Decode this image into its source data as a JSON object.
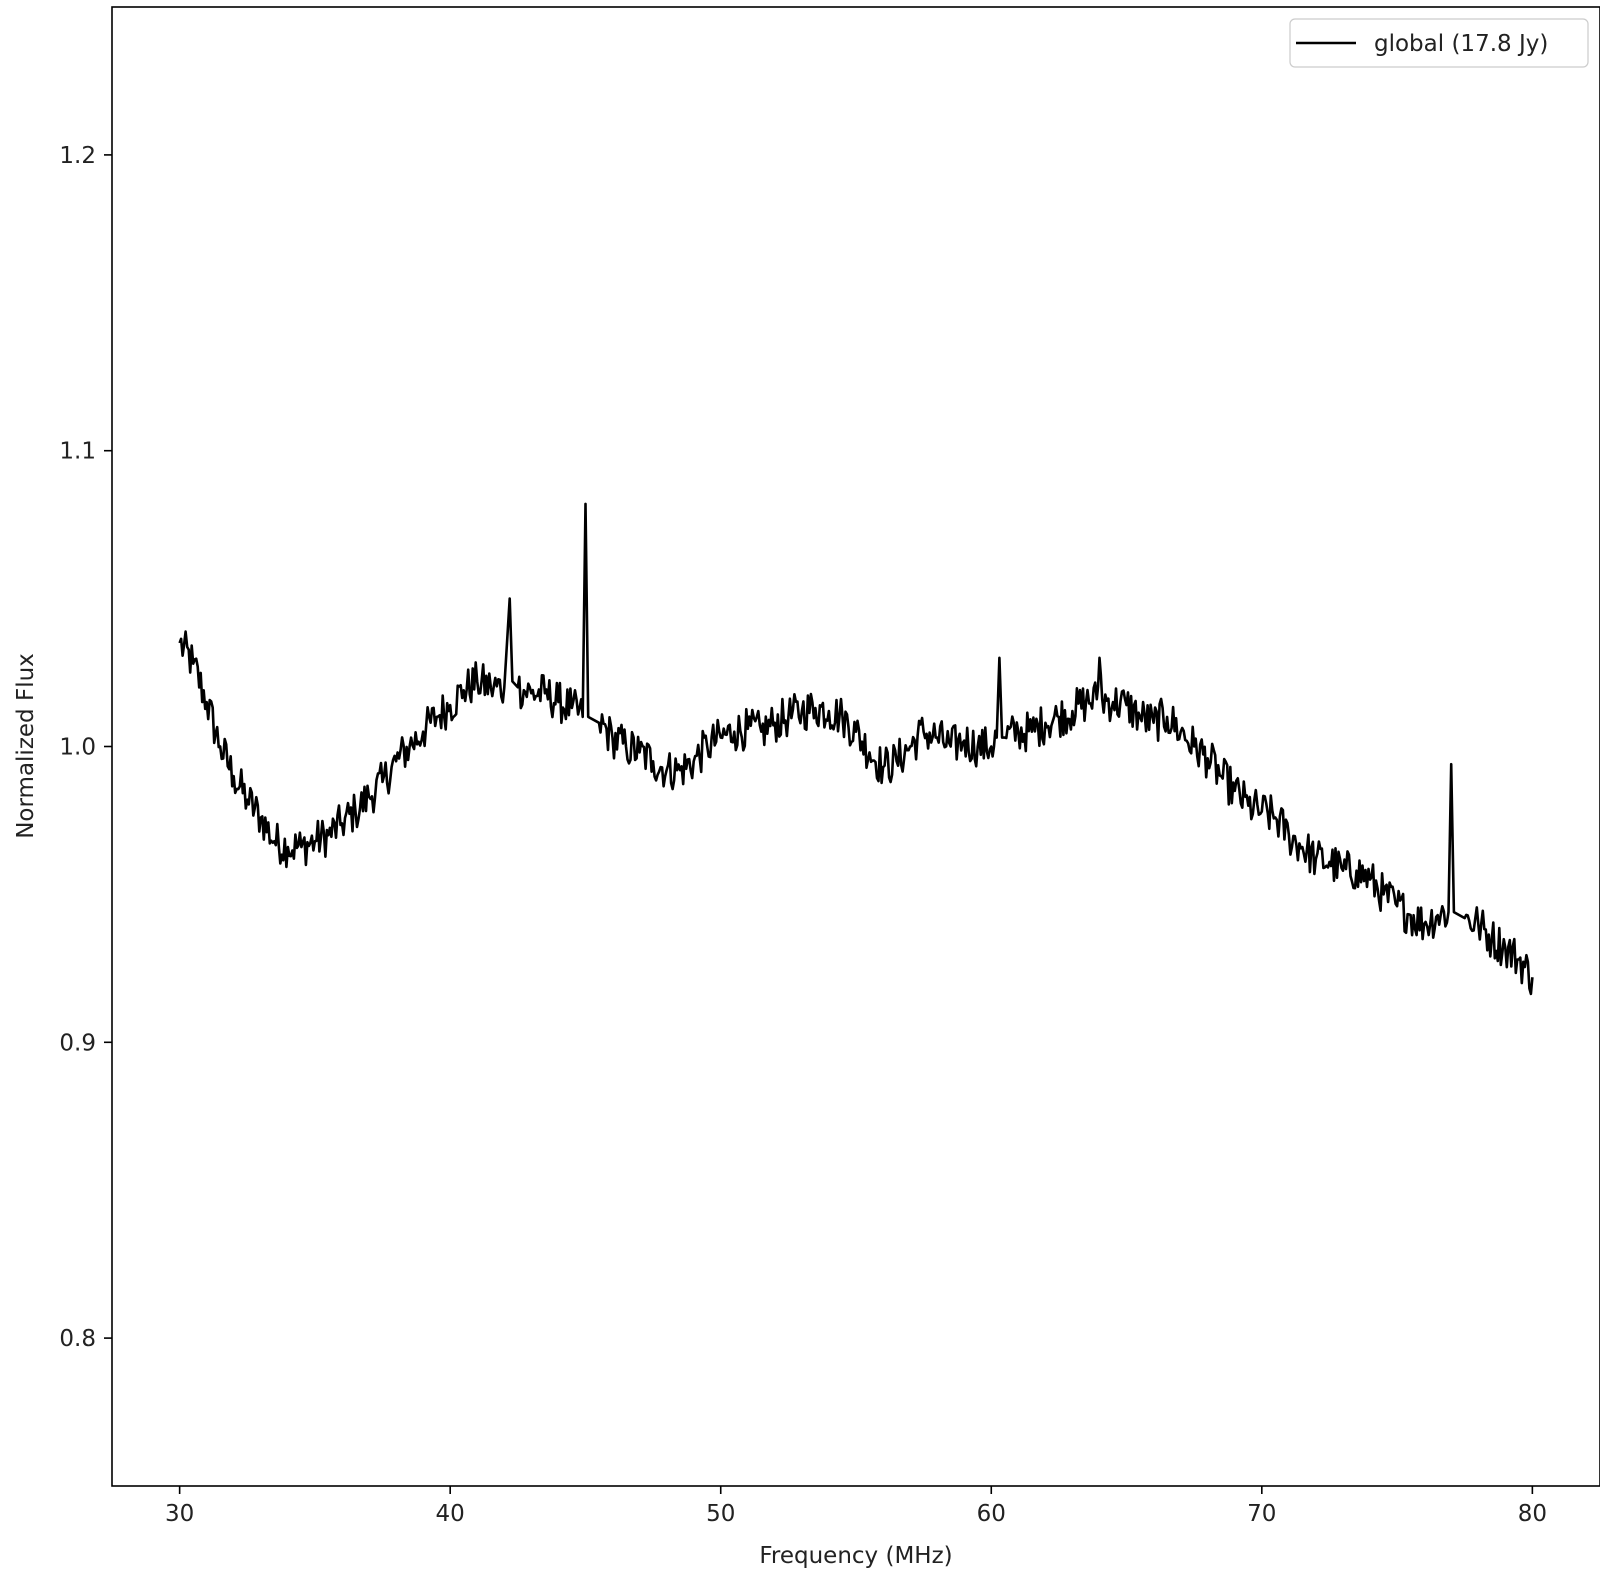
{
  "chart_data": {
    "type": "line",
    "title": "",
    "xlabel": "Frequency (MHz)",
    "ylabel": "Normalized Flux",
    "xlim": [
      27.5,
      82.5
    ],
    "ylim": [
      0.75,
      1.25
    ],
    "xticks": [
      30,
      40,
      50,
      60,
      70,
      80
    ],
    "yticks": [
      0.8,
      0.9,
      1.0,
      1.1,
      1.2
    ],
    "xtick_labels": [
      "30",
      "40",
      "50",
      "60",
      "70",
      "80"
    ],
    "ytick_labels": [
      "0.8",
      "0.9",
      "1.0",
      "1.1",
      "1.2"
    ],
    "grid": false,
    "legend_position": "top-right",
    "line_color": "#000000",
    "series": [
      {
        "name": "global (17.8 Jy)",
        "x": [
          30.0,
          30.5,
          31.0,
          31.5,
          32.0,
          32.5,
          33.0,
          33.5,
          34.0,
          34.5,
          35.0,
          35.5,
          36.0,
          36.5,
          37.0,
          37.5,
          38.0,
          38.5,
          39.0,
          39.5,
          40.0,
          40.5,
          41.0,
          41.5,
          42.0,
          42.2,
          42.3,
          42.5,
          43.0,
          43.5,
          44.0,
          44.5,
          44.9,
          45.0,
          45.1,
          45.5,
          46.0,
          46.5,
          47.0,
          47.5,
          48.0,
          48.5,
          49.0,
          49.5,
          50.0,
          50.5,
          51.0,
          51.5,
          52.0,
          52.5,
          53.0,
          53.5,
          54.0,
          54.5,
          55.0,
          55.5,
          56.0,
          56.5,
          57.0,
          57.5,
          58.0,
          58.5,
          59.0,
          59.5,
          60.0,
          60.2,
          60.3,
          60.4,
          60.5,
          61.0,
          61.5,
          62.0,
          62.5,
          63.0,
          63.5,
          63.9,
          64.0,
          64.1,
          64.5,
          65.0,
          65.5,
          66.0,
          66.5,
          67.0,
          67.5,
          68.0,
          68.5,
          69.0,
          69.5,
          70.0,
          70.5,
          71.0,
          71.5,
          72.0,
          72.5,
          73.0,
          73.5,
          74.0,
          74.5,
          75.0,
          75.5,
          76.0,
          76.5,
          76.9,
          77.0,
          77.1,
          77.5,
          78.0,
          78.5,
          79.0,
          79.5,
          80.0
        ],
        "values": [
          1.035,
          1.028,
          1.015,
          1.0,
          0.99,
          0.982,
          0.976,
          0.968,
          0.966,
          0.966,
          0.968,
          0.97,
          0.974,
          0.978,
          0.983,
          0.988,
          0.995,
          1.0,
          1.005,
          1.01,
          1.014,
          1.019,
          1.022,
          1.02,
          1.02,
          1.05,
          1.022,
          1.02,
          1.018,
          1.018,
          1.015,
          1.013,
          1.01,
          1.082,
          1.01,
          1.008,
          1.003,
          1.0,
          0.998,
          0.995,
          0.992,
          0.992,
          0.995,
          1.0,
          1.003,
          1.005,
          1.006,
          1.005,
          1.008,
          1.01,
          1.012,
          1.013,
          1.012,
          1.01,
          1.005,
          0.998,
          0.993,
          0.995,
          1.0,
          1.005,
          1.003,
          1.0,
          1.002,
          1.0,
          1.0,
          1.003,
          1.03,
          1.003,
          1.003,
          1.005,
          1.005,
          1.008,
          1.01,
          1.012,
          1.015,
          1.016,
          1.03,
          1.016,
          1.015,
          1.014,
          1.01,
          1.008,
          1.01,
          1.005,
          1.0,
          0.996,
          0.99,
          0.985,
          0.98,
          0.978,
          0.976,
          0.97,
          0.966,
          0.962,
          0.961,
          0.958,
          0.958,
          0.955,
          0.95,
          0.946,
          0.943,
          0.94,
          0.943,
          0.944,
          0.994,
          0.944,
          0.942,
          0.94,
          0.935,
          0.932,
          0.928,
          0.922
        ]
      }
    ]
  }
}
